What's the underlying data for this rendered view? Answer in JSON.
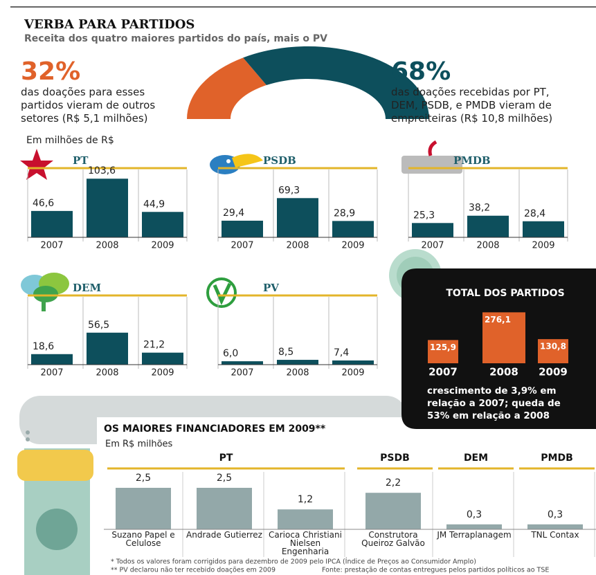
{
  "header": {
    "title": "VERBA PARA PARTIDOS",
    "subtitle": "Receita dos quatro maiores partidos do país, mais o PV"
  },
  "party_unit": "Em milhões de R$",
  "chart_data": [
    {
      "type": "pie",
      "values": [
        32,
        68
      ],
      "value_labels": [
        "32%",
        "68%"
      ],
      "colors": [
        "#e0622a",
        "#0d4f5c"
      ],
      "descriptions": [
        "das doações para esses partidos vieram de outros setores (R$ 5,1 milhões)",
        "das doações recebidas por PT, DEM, PSDB, e PMDB vieram de empreiteiras (R$ 10,8 milhões)"
      ]
    },
    {
      "type": "bar",
      "title": "PT",
      "categories": [
        "2007",
        "2008",
        "2009"
      ],
      "values": [
        46.6,
        103.6,
        44.9
      ],
      "value_labels": [
        "46,6",
        "103,6",
        "44,9"
      ],
      "color": "#0d4f5c",
      "ylim": [
        0,
        110
      ]
    },
    {
      "type": "bar",
      "title": "PSDB",
      "categories": [
        "2007",
        "2008",
        "2009"
      ],
      "values": [
        29.4,
        69.3,
        28.9
      ],
      "value_labels": [
        "29,4",
        "69,3",
        "28,9"
      ],
      "color": "#0d4f5c",
      "ylim": [
        0,
        110
      ]
    },
    {
      "type": "bar",
      "title": "PMDB",
      "categories": [
        "2007",
        "2008",
        "2009"
      ],
      "values": [
        25.3,
        38.2,
        28.4
      ],
      "value_labels": [
        "25,3",
        "38,2",
        "28,4"
      ],
      "color": "#0d4f5c",
      "ylim": [
        0,
        110
      ]
    },
    {
      "type": "bar",
      "title": "DEM",
      "categories": [
        "2007",
        "2008",
        "2009"
      ],
      "values": [
        18.6,
        56.5,
        21.2
      ],
      "value_labels": [
        "18,6",
        "56,5",
        "21,2"
      ],
      "color": "#0d4f5c",
      "ylim": [
        0,
        110
      ]
    },
    {
      "type": "bar",
      "title": "PV",
      "categories": [
        "2007",
        "2008",
        "2009"
      ],
      "values": [
        6.0,
        8.5,
        7.4
      ],
      "value_labels": [
        "6,0",
        "8,5",
        "7,4"
      ],
      "color": "#0d4f5c",
      "ylim": [
        0,
        110
      ]
    },
    {
      "type": "bar",
      "title": "TOTAL DOS PARTIDOS",
      "categories": [
        "2007",
        "2008",
        "2009"
      ],
      "values": [
        125.9,
        276.1,
        130.8
      ],
      "value_labels": [
        "125,9",
        "276,1",
        "130,8"
      ],
      "color": "#e0622a",
      "ylim": [
        0,
        300
      ],
      "note": "crescimento de 3,9% em relação a 2007; queda de 53% em relação a 2008"
    },
    {
      "type": "bar",
      "title": "OS MAIORES FINANCIADORES EM 2009**",
      "subtitle": "Em R$ milhões",
      "groups": [
        "PT",
        "PSDB",
        "DEM",
        "PMDB"
      ],
      "categories": [
        "Suzano Papel e Celulose",
        "Andrade Gutierrez",
        "Carioca Christiani Nielsen Engenharia",
        "Construtora Queiroz Galvão",
        "JM Terraplanagem",
        "TNL Contax"
      ],
      "values": [
        2.5,
        2.5,
        1.2,
        2.2,
        0.3,
        0.3
      ],
      "value_labels": [
        "2,5",
        "2,5",
        "1,2",
        "2,2",
        "0,3",
        "0,3"
      ],
      "color": "#93a8a9",
      "ylim": [
        0,
        3
      ]
    }
  ],
  "notes": [
    "* Todos os valores foram corrigidos para dezembro de 2009 pelo IPCA (Índice de Preços ao Consumidor Amplo)",
    "** PV declarou não ter recebido doações em 2009"
  ],
  "source": "Fonte: prestação de contas entregues pelos partidos políticos ao TSE"
}
